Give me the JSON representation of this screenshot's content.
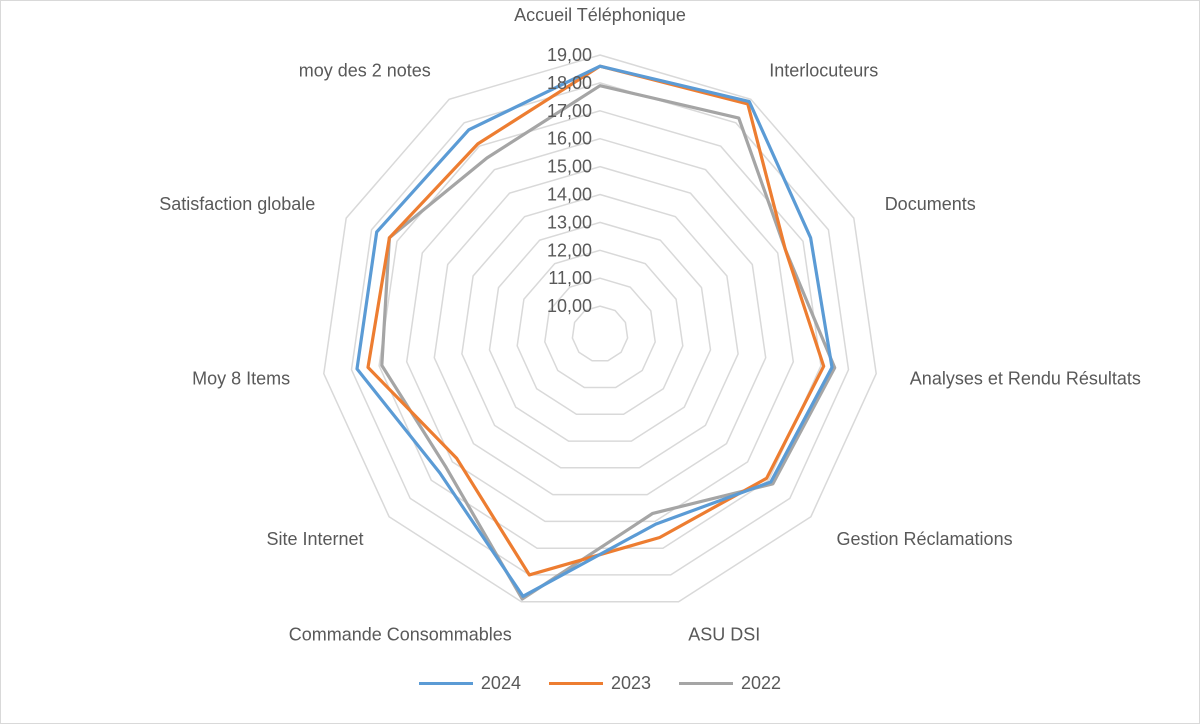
{
  "chart_data": {
    "type": "radar",
    "title": "",
    "categories": [
      "Accueil Téléphonique",
      "Interlocuteurs",
      "Documents",
      "Analyses et Rendu Résultats",
      "Gestion Réclamations",
      "ASU DSI",
      "Commande Consommables",
      "Site Internet",
      "Moy 8 Items",
      "Satisfaction globale",
      "moy des 2 notes"
    ],
    "rlim": [
      9,
      19
    ],
    "ticks": [
      "10,00",
      "11,00",
      "12,00",
      "13,00",
      "14,00",
      "15,00",
      "16,00",
      "17,00",
      "18,00",
      "19,00"
    ],
    "grid": true,
    "legend_position": "bottom",
    "series": [
      {
        "name": "2024",
        "color": "#5B9BD5",
        "values": [
          18.6,
          18.9,
          17.3,
          17.4,
          17.1,
          16.1,
          18.8,
          16.6,
          17.8,
          17.8,
          17.7
        ]
      },
      {
        "name": "2023",
        "color": "#ED7D31",
        "values": [
          18.6,
          18.8,
          16.3,
          17.1,
          16.9,
          16.6,
          18.0,
          15.8,
          17.4,
          17.3,
          17.1
        ]
      },
      {
        "name": "2022",
        "color": "#A5A5A5",
        "values": [
          17.9,
          18.2,
          16.3,
          17.5,
          17.2,
          15.7,
          18.9,
          16.3,
          16.9,
          17.3,
          16.5
        ]
      }
    ]
  }
}
